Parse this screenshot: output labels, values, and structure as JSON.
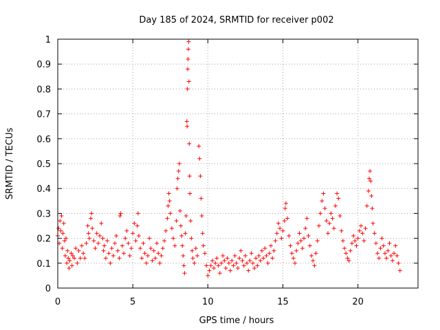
{
  "chart_data": {
    "type": "scatter",
    "title": "Day 185 of 2024, SRMTID for receiver p002",
    "xlabel": "GPS time / hours",
    "ylabel": "SRMTID / TECUs",
    "xlim": [
      0,
      24
    ],
    "ylim": [
      0,
      1
    ],
    "xticks": [
      0,
      5,
      10,
      15,
      20
    ],
    "xtick_labels": [
      "0",
      "5",
      "10",
      "15",
      "20"
    ],
    "yticks": [
      0,
      0.1,
      0.2,
      0.3,
      0.4,
      0.5,
      0.6,
      0.7,
      0.8,
      0.9,
      1
    ],
    "ytick_labels": [
      "0",
      "0.1",
      "0.2",
      "0.3",
      "0.4",
      "0.5",
      "0.6",
      "0.7",
      "0.8",
      "0.9",
      "1"
    ],
    "grid": true,
    "marker": "+",
    "color": "#ff0000",
    "series": [
      {
        "name": "SRMTID",
        "points": [
          [
            0.0,
            0.21
          ],
          [
            0.05,
            0.24
          ],
          [
            0.1,
            0.18
          ],
          [
            0.15,
            0.27
          ],
          [
            0.2,
            0.23
          ],
          [
            0.25,
            0.29
          ],
          [
            0.3,
            0.16
          ],
          [
            0.35,
            0.22
          ],
          [
            0.4,
            0.26
          ],
          [
            0.45,
            0.19
          ],
          [
            0.5,
            0.13
          ],
          [
            0.55,
            0.2
          ],
          [
            0.6,
            0.1
          ],
          [
            0.65,
            0.15
          ],
          [
            0.7,
            0.12
          ],
          [
            0.75,
            0.08
          ],
          [
            0.8,
            0.11
          ],
          [
            0.9,
            0.14
          ],
          [
            0.95,
            0.09
          ],
          [
            1.0,
            0.13
          ],
          [
            1.1,
            0.12
          ],
          [
            1.2,
            0.16
          ],
          [
            1.3,
            0.1
          ],
          [
            1.4,
            0.15
          ],
          [
            1.5,
            0.12
          ],
          [
            1.6,
            0.17
          ],
          [
            1.7,
            0.14
          ],
          [
            1.8,
            0.12
          ],
          [
            1.9,
            0.18
          ],
          [
            2.0,
            0.25
          ],
          [
            2.05,
            0.22
          ],
          [
            2.1,
            0.2
          ],
          [
            2.2,
            0.28
          ],
          [
            2.25,
            0.3
          ],
          [
            2.3,
            0.24
          ],
          [
            2.4,
            0.19
          ],
          [
            2.5,
            0.16
          ],
          [
            2.6,
            0.22
          ],
          [
            2.7,
            0.18
          ],
          [
            2.8,
            0.21
          ],
          [
            2.9,
            0.26
          ],
          [
            3.0,
            0.2
          ],
          [
            3.05,
            0.15
          ],
          [
            3.1,
            0.17
          ],
          [
            3.2,
            0.12
          ],
          [
            3.3,
            0.19
          ],
          [
            3.4,
            0.14
          ],
          [
            3.5,
            0.1
          ],
          [
            3.6,
            0.16
          ],
          [
            3.7,
            0.13
          ],
          [
            3.8,
            0.18
          ],
          [
            3.9,
            0.21
          ],
          [
            4.0,
            0.15
          ],
          [
            4.1,
            0.12
          ],
          [
            4.15,
            0.29
          ],
          [
            4.2,
            0.3
          ],
          [
            4.3,
            0.17
          ],
          [
            4.4,
            0.14
          ],
          [
            4.5,
            0.2
          ],
          [
            4.6,
            0.23
          ],
          [
            4.7,
            0.18
          ],
          [
            4.8,
            0.13
          ],
          [
            4.9,
            0.16
          ],
          [
            5.0,
            0.22
          ],
          [
            5.1,
            0.26
          ],
          [
            5.2,
            0.19
          ],
          [
            5.3,
            0.25
          ],
          [
            5.35,
            0.3
          ],
          [
            5.4,
            0.21
          ],
          [
            5.5,
            0.16
          ],
          [
            5.6,
            0.12
          ],
          [
            5.7,
            0.18
          ],
          [
            5.8,
            0.14
          ],
          [
            5.9,
            0.1
          ],
          [
            6.0,
            0.13
          ],
          [
            6.1,
            0.2
          ],
          [
            6.2,
            0.16
          ],
          [
            6.3,
            0.11
          ],
          [
            6.4,
            0.15
          ],
          [
            6.5,
            0.12
          ],
          [
            6.6,
            0.18
          ],
          [
            6.7,
            0.14
          ],
          [
            6.8,
            0.1
          ],
          [
            6.9,
            0.13
          ],
          [
            7.0,
            0.16
          ],
          [
            7.1,
            0.19
          ],
          [
            7.2,
            0.23
          ],
          [
            7.3,
            0.28
          ],
          [
            7.35,
            0.33
          ],
          [
            7.4,
            0.38
          ],
          [
            7.45,
            0.35
          ],
          [
            7.5,
            0.3
          ],
          [
            7.6,
            0.24
          ],
          [
            7.7,
            0.2
          ],
          [
            7.8,
            0.17
          ],
          [
            7.9,
            0.27
          ],
          [
            7.95,
            0.4
          ],
          [
            8.0,
            0.44
          ],
          [
            8.05,
            0.47
          ],
          [
            8.1,
            0.5
          ],
          [
            8.15,
            0.31
          ],
          [
            8.2,
            0.25
          ],
          [
            8.25,
            0.21
          ],
          [
            8.3,
            0.17
          ],
          [
            8.35,
            0.13
          ],
          [
            8.4,
            0.09
          ],
          [
            8.45,
            0.06
          ],
          [
            8.5,
            0.22
          ],
          [
            8.55,
            0.29
          ],
          [
            8.6,
            0.67
          ],
          [
            8.62,
            0.65
          ],
          [
            8.64,
            0.8
          ],
          [
            8.66,
            0.88
          ],
          [
            8.68,
            0.92
          ],
          [
            8.7,
            0.96
          ],
          [
            8.72,
            0.99
          ],
          [
            8.74,
            0.83
          ],
          [
            8.76,
            0.58
          ],
          [
            8.78,
            0.45
          ],
          [
            8.8,
            0.38
          ],
          [
            8.85,
            0.27
          ],
          [
            8.9,
            0.2
          ],
          [
            8.95,
            0.15
          ],
          [
            9.0,
            0.12
          ],
          [
            9.1,
            0.1
          ],
          [
            9.2,
            0.16
          ],
          [
            9.3,
            0.13
          ],
          [
            9.4,
            0.57
          ],
          [
            9.45,
            0.52
          ],
          [
            9.5,
            0.45
          ],
          [
            9.55,
            0.36
          ],
          [
            9.6,
            0.29
          ],
          [
            9.65,
            0.22
          ],
          [
            9.7,
            0.17
          ],
          [
            9.8,
            0.14
          ],
          [
            9.9,
            0.09
          ],
          [
            10.0,
            0.05
          ],
          [
            10.1,
            0.07
          ],
          [
            10.2,
            0.09
          ],
          [
            10.3,
            0.11
          ],
          [
            10.4,
            0.08
          ],
          [
            10.5,
            0.1
          ],
          [
            10.6,
            0.12
          ],
          [
            10.7,
            0.09
          ],
          [
            10.8,
            0.06
          ],
          [
            10.9,
            0.1
          ],
          [
            11.0,
            0.13
          ],
          [
            11.1,
            0.11
          ],
          [
            11.2,
            0.08
          ],
          [
            11.3,
            0.12
          ],
          [
            11.4,
            0.1
          ],
          [
            11.5,
            0.07
          ],
          [
            11.6,
            0.11
          ],
          [
            11.7,
            0.09
          ],
          [
            11.8,
            0.13
          ],
          [
            11.9,
            0.1
          ],
          [
            12.0,
            0.08
          ],
          [
            12.1,
            0.12
          ],
          [
            12.2,
            0.15
          ],
          [
            12.3,
            0.11
          ],
          [
            12.4,
            0.09
          ],
          [
            12.5,
            0.13
          ],
          [
            12.6,
            0.1
          ],
          [
            12.7,
            0.07
          ],
          [
            12.8,
            0.11
          ],
          [
            12.9,
            0.14
          ],
          [
            13.0,
            0.1
          ],
          [
            13.1,
            0.08
          ],
          [
            13.2,
            0.12
          ],
          [
            13.3,
            0.09
          ],
          [
            13.4,
            0.13
          ],
          [
            13.5,
            0.11
          ],
          [
            13.6,
            0.15
          ],
          [
            13.7,
            0.12
          ],
          [
            13.8,
            0.16
          ],
          [
            13.9,
            0.13
          ],
          [
            14.0,
            0.1
          ],
          [
            14.1,
            0.14
          ],
          [
            14.2,
            0.17
          ],
          [
            14.3,
            0.12
          ],
          [
            14.4,
            0.15
          ],
          [
            14.5,
            0.19
          ],
          [
            14.6,
            0.22
          ],
          [
            14.7,
            0.26
          ],
          [
            14.8,
            0.24
          ],
          [
            14.9,
            0.2
          ],
          [
            15.0,
            0.23
          ],
          [
            15.1,
            0.27
          ],
          [
            15.15,
            0.32
          ],
          [
            15.2,
            0.34
          ],
          [
            15.3,
            0.28
          ],
          [
            15.4,
            0.21
          ],
          [
            15.5,
            0.17
          ],
          [
            15.6,
            0.14
          ],
          [
            15.7,
            0.12
          ],
          [
            15.8,
            0.1
          ],
          [
            15.9,
            0.15
          ],
          [
            16.0,
            0.18
          ],
          [
            16.1,
            0.22
          ],
          [
            16.2,
            0.19
          ],
          [
            16.3,
            0.16
          ],
          [
            16.4,
            0.2
          ],
          [
            16.5,
            0.24
          ],
          [
            16.6,
            0.28
          ],
          [
            16.7,
            0.21
          ],
          [
            16.8,
            0.17
          ],
          [
            16.9,
            0.13
          ],
          [
            17.0,
            0.11
          ],
          [
            17.1,
            0.09
          ],
          [
            17.2,
            0.14
          ],
          [
            17.3,
            0.19
          ],
          [
            17.4,
            0.25
          ],
          [
            17.5,
            0.3
          ],
          [
            17.6,
            0.35
          ],
          [
            17.7,
            0.38
          ],
          [
            17.8,
            0.32
          ],
          [
            17.9,
            0.27
          ],
          [
            18.0,
            0.22
          ],
          [
            18.1,
            0.26
          ],
          [
            18.2,
            0.3
          ],
          [
            18.3,
            0.28
          ],
          [
            18.4,
            0.24
          ],
          [
            18.5,
            0.33
          ],
          [
            18.6,
            0.38
          ],
          [
            18.7,
            0.36
          ],
          [
            18.8,
            0.29
          ],
          [
            18.9,
            0.23
          ],
          [
            19.0,
            0.19
          ],
          [
            19.1,
            0.16
          ],
          [
            19.2,
            0.14
          ],
          [
            19.3,
            0.12
          ],
          [
            19.4,
            0.11
          ],
          [
            19.5,
            0.15
          ],
          [
            19.6,
            0.18
          ],
          [
            19.7,
            0.21
          ],
          [
            19.8,
            0.19
          ],
          [
            19.9,
            0.17
          ],
          [
            20.0,
            0.2
          ],
          [
            20.1,
            0.23
          ],
          [
            20.2,
            0.25
          ],
          [
            20.3,
            0.22
          ],
          [
            20.4,
            0.19
          ],
          [
            20.5,
            0.24
          ],
          [
            20.6,
            0.33
          ],
          [
            20.7,
            0.39
          ],
          [
            20.75,
            0.44
          ],
          [
            20.8,
            0.47
          ],
          [
            20.85,
            0.43
          ],
          [
            20.9,
            0.37
          ],
          [
            20.95,
            0.32
          ],
          [
            21.0,
            0.26
          ],
          [
            21.1,
            0.22
          ],
          [
            21.2,
            0.18
          ],
          [
            21.3,
            0.14
          ],
          [
            21.4,
            0.12
          ],
          [
            21.5,
            0.16
          ],
          [
            21.6,
            0.2
          ],
          [
            21.7,
            0.17
          ],
          [
            21.8,
            0.14
          ],
          [
            21.9,
            0.12
          ],
          [
            22.0,
            0.15
          ],
          [
            22.1,
            0.18
          ],
          [
            22.2,
            0.13
          ],
          [
            22.3,
            0.11
          ],
          [
            22.4,
            0.14
          ],
          [
            22.5,
            0.17
          ],
          [
            22.6,
            0.13
          ],
          [
            22.7,
            0.1
          ],
          [
            22.8,
            0.07
          ]
        ]
      }
    ]
  }
}
